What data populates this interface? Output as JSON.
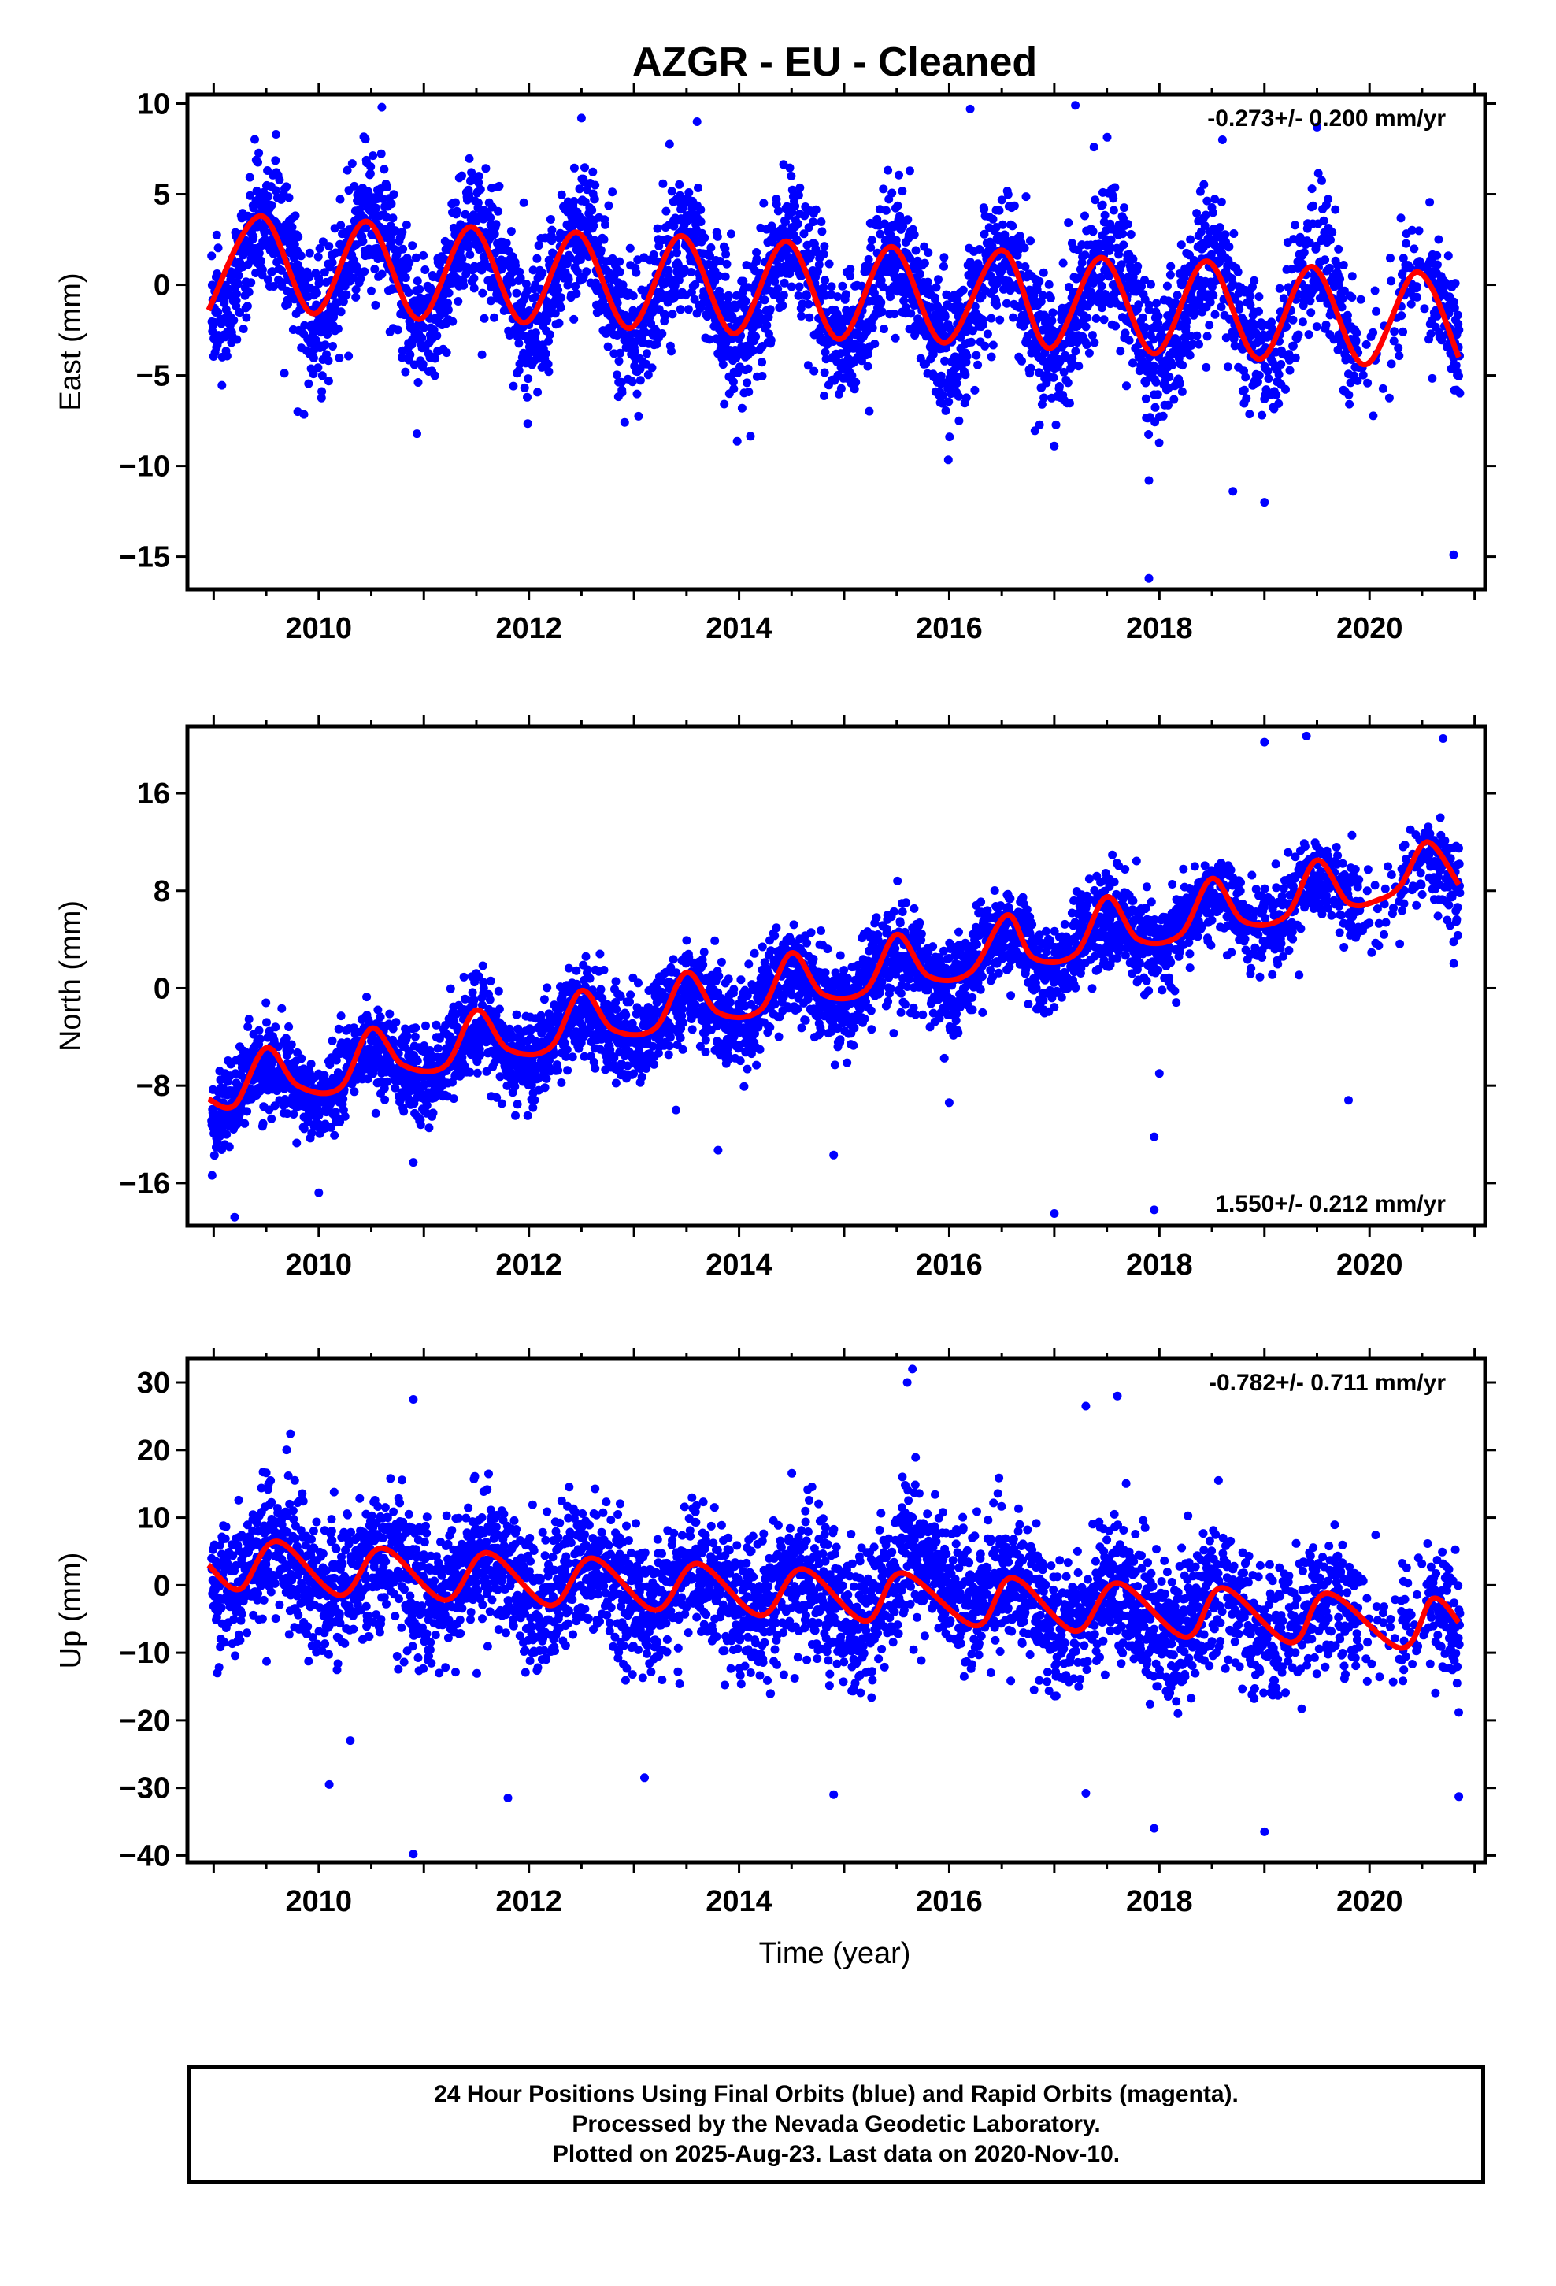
{
  "title": "AZGR  - EU - Cleaned",
  "xlabel": "Time (year)",
  "footer": {
    "line1": "24 Hour Positions Using Final Orbits (blue) and Rapid Orbits (magenta).",
    "line2": "Processed by the Nevada Geodetic Laboratory.",
    "line3": "Plotted on 2025-Aug-23. Last data on 2020-Nov-10."
  },
  "colors": {
    "points": "#0000ff",
    "fit": "#ff0000",
    "axes": "#000000"
  },
  "chart_data": [
    {
      "type": "scatter",
      "component": "east",
      "ylabel": "East (mm)",
      "annotation": "-0.273+/- 0.200 mm/yr",
      "annotation_position": "top-right",
      "xlim": [
        2008.75,
        2021.1
      ],
      "ylim": [
        -16.8,
        10.5
      ],
      "yticks": [
        -15,
        -10,
        -5,
        0,
        5,
        10
      ],
      "xticks": [
        2010,
        2012,
        2014,
        2016,
        2018,
        2020
      ],
      "trend_mm_per_yr": -0.273,
      "intercept_at_2009": 1.1,
      "annual_amplitude": 2.8,
      "peak_phase_year_fraction": 0.5,
      "scatter_sd": 1.9,
      "outliers": [
        [
          2010.6,
          9.8
        ],
        [
          2016.2,
          9.7
        ],
        [
          2017.2,
          9.9
        ],
        [
          2012.5,
          9.2
        ],
        [
          2013.6,
          9.0
        ],
        [
          2018.6,
          8.0
        ],
        [
          2019.5,
          8.7
        ],
        [
          2017.9,
          -16.2
        ],
        [
          2017.9,
          -10.8
        ],
        [
          2018.7,
          -11.4
        ],
        [
          2019.0,
          -12.0
        ],
        [
          2020.8,
          -14.9
        ],
        [
          2009.8,
          -7.0
        ]
      ],
      "fit_points": [
        [
          2008.95,
          -1.4
        ],
        [
          2009.45,
          3.8
        ],
        [
          2009.95,
          -1.6
        ],
        [
          2010.45,
          3.5
        ],
        [
          2010.95,
          -1.9
        ],
        [
          2011.45,
          3.2
        ],
        [
          2011.95,
          -2.1
        ],
        [
          2012.45,
          2.9
        ],
        [
          2012.95,
          -2.4
        ],
        [
          2013.45,
          2.7
        ],
        [
          2013.95,
          -2.7
        ],
        [
          2014.45,
          2.4
        ],
        [
          2014.95,
          -3.0
        ],
        [
          2015.45,
          2.1
        ],
        [
          2015.95,
          -3.2
        ],
        [
          2016.5,
          1.9
        ],
        [
          2016.95,
          -3.5
        ],
        [
          2017.45,
          1.5
        ],
        [
          2017.95,
          -3.8
        ],
        [
          2018.45,
          1.3
        ],
        [
          2018.95,
          -4.1
        ],
        [
          2019.45,
          1.0
        ],
        [
          2019.95,
          -4.4
        ],
        [
          2020.45,
          0.7
        ],
        [
          2020.85,
          -4.0
        ]
      ]
    },
    {
      "type": "scatter",
      "component": "north",
      "ylabel": "North (mm)",
      "annotation": "1.550+/- 0.212 mm/yr",
      "annotation_position": "bottom-right",
      "xlim": [
        2008.75,
        2021.1
      ],
      "ylim": [
        -19.5,
        21.5
      ],
      "yticks": [
        -16,
        -8,
        0,
        8,
        16
      ],
      "xticks": [
        2010,
        2012,
        2014,
        2016,
        2018,
        2020
      ],
      "trend_mm_per_yr": 1.55,
      "intercept_at_2009": -9.0,
      "annual_amplitude": 1.8,
      "peak_phase_year_fraction": 0.5,
      "scatter_sd": 1.8,
      "outliers": [
        [
          2009.2,
          -18.8
        ],
        [
          2010.0,
          -16.8
        ],
        [
          2010.9,
          -14.3
        ],
        [
          2013.4,
          -10.0
        ],
        [
          2013.8,
          -13.3
        ],
        [
          2014.9,
          -13.7
        ],
        [
          2016.0,
          -9.4
        ],
        [
          2017.0,
          -18.5
        ],
        [
          2017.95,
          -12.2
        ],
        [
          2017.95,
          -18.2
        ],
        [
          2018.0,
          -7.0
        ],
        [
          2019.0,
          20.2
        ],
        [
          2019.4,
          20.7
        ],
        [
          2019.8,
          -9.2
        ],
        [
          2020.7,
          20.5
        ],
        [
          2020.8,
          3.8
        ]
      ],
      "fit_points": [
        [
          2008.95,
          -9.1
        ],
        [
          2009.2,
          -9.6
        ],
        [
          2009.5,
          -4.9
        ],
        [
          2009.8,
          -8.0
        ],
        [
          2010.2,
          -8.2
        ],
        [
          2010.5,
          -3.3
        ],
        [
          2010.8,
          -6.3
        ],
        [
          2011.2,
          -6.4
        ],
        [
          2011.5,
          -1.8
        ],
        [
          2011.8,
          -5.0
        ],
        [
          2012.2,
          -4.9
        ],
        [
          2012.5,
          -0.2
        ],
        [
          2012.8,
          -3.4
        ],
        [
          2013.2,
          -3.3
        ],
        [
          2013.5,
          1.3
        ],
        [
          2013.8,
          -2.0
        ],
        [
          2014.2,
          -1.8
        ],
        [
          2014.5,
          2.9
        ],
        [
          2014.8,
          -0.5
        ],
        [
          2015.2,
          -0.2
        ],
        [
          2015.5,
          4.4
        ],
        [
          2015.8,
          1.0
        ],
        [
          2016.2,
          1.3
        ],
        [
          2016.55,
          6.0
        ],
        [
          2016.8,
          2.5
        ],
        [
          2017.2,
          2.8
        ],
        [
          2017.5,
          7.5
        ],
        [
          2017.8,
          4.0
        ],
        [
          2018.2,
          4.4
        ],
        [
          2018.5,
          9.0
        ],
        [
          2018.8,
          5.5
        ],
        [
          2019.2,
          5.9
        ],
        [
          2019.5,
          10.5
        ],
        [
          2019.8,
          7.0
        ],
        [
          2020.1,
          7.3
        ],
        [
          2020.3,
          8.5
        ],
        [
          2020.55,
          12.0
        ],
        [
          2020.85,
          8.5
        ]
      ]
    },
    {
      "type": "scatter",
      "component": "up",
      "ylabel": "Up (mm)",
      "annotation": "-0.782+/- 0.711 mm/yr",
      "annotation_position": "top-right",
      "xlim": [
        2008.75,
        2021.1
      ],
      "ylim": [
        -41,
        33.5
      ],
      "yticks": [
        -40,
        -30,
        -20,
        -10,
        0,
        10,
        20,
        30
      ],
      "xticks": [
        2010,
        2012,
        2014,
        2016,
        2018,
        2020
      ],
      "trend_mm_per_yr": -0.782,
      "intercept_at_2009": 3.0,
      "annual_amplitude": 3.0,
      "peak_phase_year_fraction": 0.6,
      "scatter_sd": 5.0,
      "step_at_year": 2015.55,
      "step_mm": 5.0,
      "outliers": [
        [
          2015.6,
          30.0
        ],
        [
          2015.65,
          32.0
        ],
        [
          2010.9,
          27.5
        ],
        [
          2017.6,
          28.0
        ],
        [
          2017.3,
          26.5
        ],
        [
          2019.0,
          -36.5
        ],
        [
          2017.95,
          -36.0
        ],
        [
          2010.9,
          -39.8
        ],
        [
          2010.1,
          -29.5
        ],
        [
          2011.8,
          -31.5
        ],
        [
          2013.1,
          -28.5
        ],
        [
          2014.9,
          -31.0
        ],
        [
          2017.3,
          -30.8
        ],
        [
          2020.85,
          -31.3
        ],
        [
          2010.3,
          -23.0
        ]
      ],
      "fit_points": [
        [
          2008.95,
          3.0
        ],
        [
          2009.25,
          -0.6
        ],
        [
          2009.6,
          6.5
        ],
        [
          2010.2,
          -1.5
        ],
        [
          2010.6,
          5.5
        ],
        [
          2011.2,
          -2.2
        ],
        [
          2011.6,
          4.8
        ],
        [
          2012.2,
          -3.0
        ],
        [
          2012.6,
          4.0
        ],
        [
          2013.2,
          -3.7
        ],
        [
          2013.6,
          3.2
        ],
        [
          2014.2,
          -4.5
        ],
        [
          2014.6,
          2.4
        ],
        [
          2015.2,
          -5.3
        ],
        [
          2015.55,
          1.8
        ],
        [
          2016.25,
          -6.0
        ],
        [
          2016.6,
          1.1
        ],
        [
          2017.2,
          -6.8
        ],
        [
          2017.6,
          0.3
        ],
        [
          2018.25,
          -7.7
        ],
        [
          2018.6,
          -0.4
        ],
        [
          2019.25,
          -8.5
        ],
        [
          2019.6,
          -1.2
        ],
        [
          2020.3,
          -9.3
        ],
        [
          2020.6,
          -2.0
        ],
        [
          2020.85,
          -5.5
        ]
      ]
    }
  ]
}
